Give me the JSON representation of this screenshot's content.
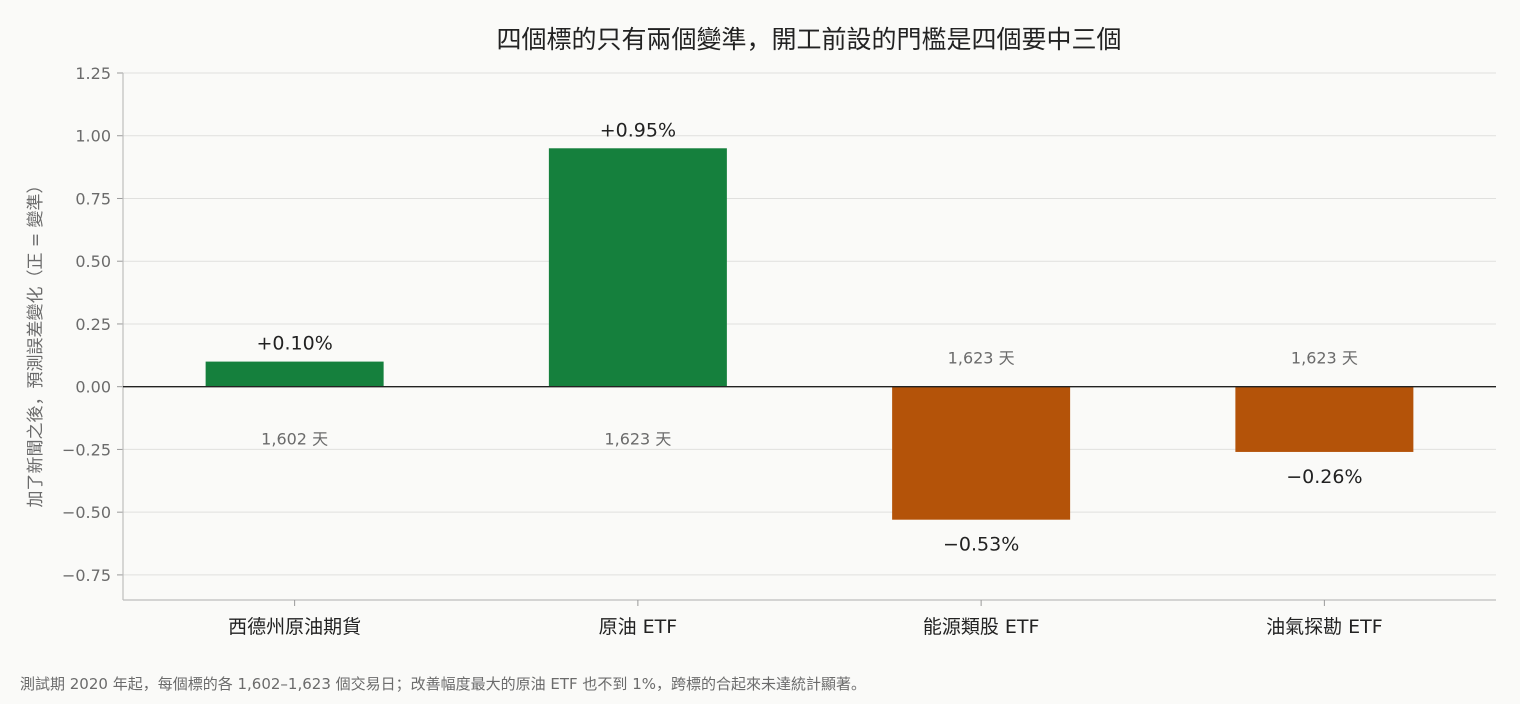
{
  "chart_data": {
    "type": "bar",
    "title": "四個標的只有兩個變準，開工前設的門檻是四個要中三個",
    "ylabel": "加了新聞之後，預測誤差變化（正 = 變準）",
    "xlabel": "",
    "categories": [
      "西德州原油期貨",
      "原油 ETF",
      "能源類股 ETF",
      "油氣探勘 ETF"
    ],
    "values": [
      0.1,
      0.95,
      -0.53,
      -0.26
    ],
    "value_labels": [
      "+0.10%",
      "+0.95%",
      "−0.53%",
      "−0.26%"
    ],
    "day_labels": [
      "1,602 天",
      "1,623 天",
      "1,623 天",
      "1,623 天"
    ],
    "colors": [
      "#15803d",
      "#15803d",
      "#b45309",
      "#b45309"
    ],
    "ylim": [
      -0.85,
      1.25
    ],
    "yticks": [
      1.25,
      1.0,
      0.75,
      0.5,
      0.25,
      0.0,
      -0.25,
      -0.5,
      -0.75
    ],
    "ytick_labels": [
      "1.25",
      "1.00",
      "0.75",
      "0.50",
      "0.25",
      "0.00",
      "−0.25",
      "−0.50",
      "−0.75"
    ],
    "grid": true,
    "zero_line_color": "#222222"
  },
  "footnote": "測試期 2020 年起，每個標的各 1,602–1,623 個交易日；改善幅度最大的原油 ETF 也不到 1%，跨標的合起來未達統計顯著。"
}
